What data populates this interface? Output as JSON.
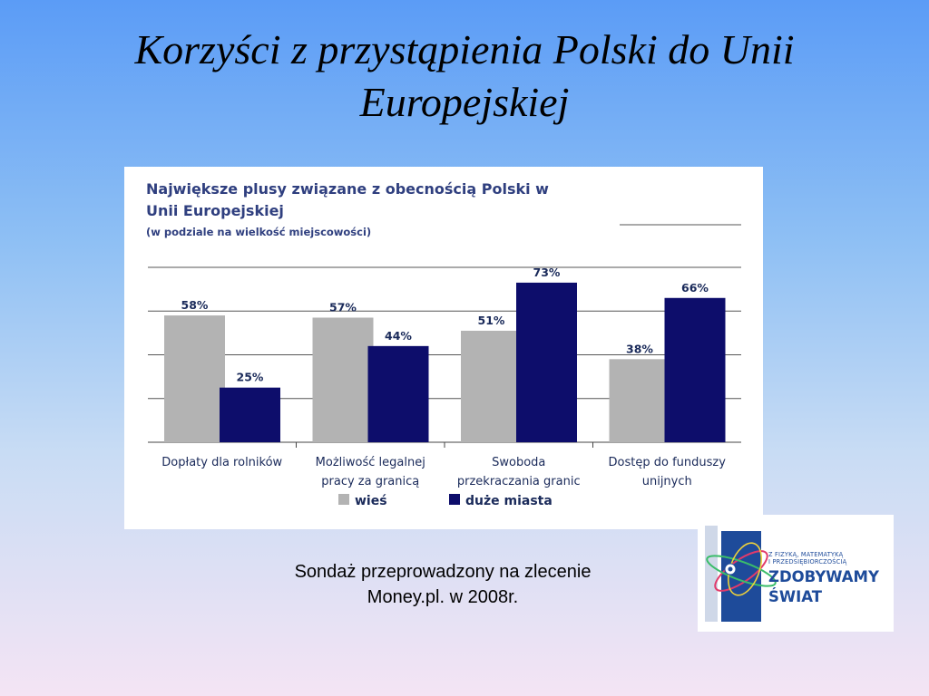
{
  "slide": {
    "title": "Korzyści z przystąpienia Polski do Unii Europejskiej",
    "caption_line1": "Sondaż przeprowadzony na zlecenie",
    "caption_line2": "Money.pl. w 2008r."
  },
  "logo": {
    "small_line1": "Z FIZYKĄ, MATEMATYKĄ",
    "small_line2": "I PRZEDSIĘBIORCZOŚCIĄ",
    "big_line1": "ZDOBYWAMY",
    "big_line2": "ŚWIAT"
  },
  "chart_data": {
    "type": "bar",
    "title": "Największe plusy związane z obecnością Polski w",
    "title_line2": "Unii Europejskiej",
    "subtitle": "(w podziale na wielkość miejscowości)",
    "categories": [
      [
        "Dopłaty dla rolników"
      ],
      [
        "Możliwość legalnej",
        "pracy za granicą"
      ],
      [
        "Swoboda",
        "przekraczania granic"
      ],
      [
        "Dostęp do funduszy",
        "unijnych"
      ]
    ],
    "series": [
      {
        "name": "wieś",
        "values": [
          58,
          57,
          51,
          38
        ],
        "labels": [
          "58%",
          "57%",
          "51%",
          "38%"
        ],
        "color": "#b3b3b3"
      },
      {
        "name": "duże miasta",
        "values": [
          25,
          44,
          73,
          66
        ],
        "labels": [
          "25%",
          "44%",
          "73%",
          "66%"
        ],
        "color": "#0d0d6b"
      }
    ],
    "ylim": [
      0,
      80
    ],
    "grid": true,
    "legend_position": "bottom"
  }
}
